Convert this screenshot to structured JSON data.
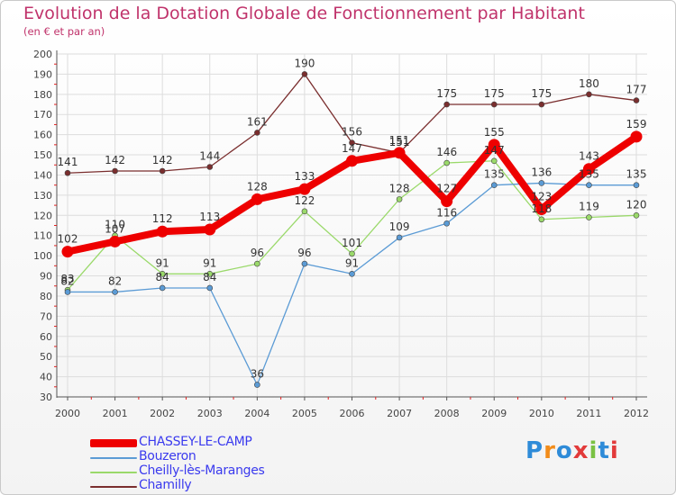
{
  "header": {
    "title": "Evolution de la Dotation Globale de Fonctionnement par Habitant",
    "subtitle": "(en € et par an)"
  },
  "colors": {
    "title": "#c0336b",
    "axis": "#555555",
    "grid": "#dddddd",
    "tick_marks": "#e02020",
    "legend_text": "#3a3aee"
  },
  "logo": {
    "text": "Proxiti"
  },
  "chart_data": {
    "type": "line",
    "title": "Evolution de la Dotation Globale de Fonctionnement par Habitant",
    "subtitle": "(en € et par an)",
    "xlabel": "",
    "ylabel": "",
    "x": [
      "2000",
      "2001",
      "2002",
      "2003",
      "2004",
      "2005",
      "2006",
      "2007",
      "2008",
      "2009",
      "2010",
      "2011",
      "2012"
    ],
    "ylim": [
      30,
      200
    ],
    "yticks": [
      30,
      40,
      50,
      60,
      70,
      80,
      90,
      100,
      110,
      120,
      130,
      140,
      150,
      160,
      170,
      180,
      190,
      200
    ],
    "grid": true,
    "legend_position": "bottom-left",
    "series": [
      {
        "name": "CHASSEY-LE-CAMP",
        "color": "#ee0000",
        "values": [
          102,
          107,
          112,
          113,
          128,
          133,
          147,
          151,
          127,
          155,
          123,
          143,
          159
        ],
        "labels": [
          "102",
          "107",
          "112",
          "113",
          "128",
          "133",
          "147",
          "151",
          "127",
          "155",
          "123",
          "143",
          "159"
        ]
      },
      {
        "name": "Bouzeron",
        "color": "#5b9bd5",
        "values": [
          82,
          82,
          84,
          84,
          36,
          96,
          91,
          109,
          116,
          135,
          136,
          135,
          135
        ],
        "labels": [
          "82",
          "82",
          "84",
          "84",
          "36",
          "96",
          "91",
          "109",
          "116",
          "135",
          "136",
          "135",
          "135"
        ]
      },
      {
        "name": "Cheilly-lès-Maranges",
        "color": "#9ad96a",
        "values": [
          83,
          110,
          91,
          91,
          96,
          122,
          101,
          128,
          146,
          147,
          118,
          119,
          120
        ],
        "labels": [
          "83",
          "110",
          "91",
          "91",
          "96",
          "122",
          "101",
          "128",
          "146",
          "147",
          "118",
          "119",
          "120"
        ]
      },
      {
        "name": "Chamilly",
        "color": "#7a2e2e",
        "values": [
          141,
          142,
          142,
          144,
          161,
          190,
          156,
          151,
          175,
          175,
          175,
          180,
          177
        ],
        "labels": [
          "141",
          "142",
          "142",
          "144",
          "161",
          "190",
          "156",
          "151",
          "175",
          "175",
          "175",
          "180",
          "177"
        ]
      }
    ]
  }
}
